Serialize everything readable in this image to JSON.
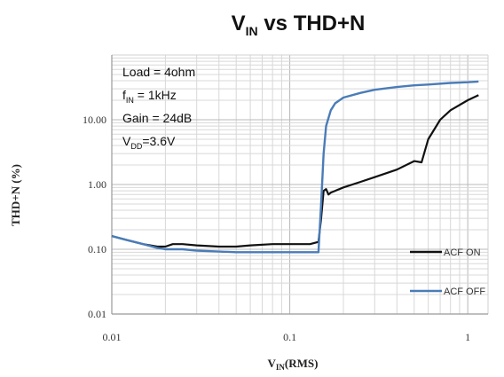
{
  "chart_data": {
    "type": "line",
    "title": {
      "main": "V",
      "sub": "IN",
      "rest": " vs THD+N"
    },
    "xlabel": {
      "main": "V",
      "sub": "IN",
      "rest": "(RMS)"
    },
    "ylabel": "THD+N (%)",
    "x_scale": "log",
    "y_scale": "log",
    "xlim": [
      0.01,
      1.3
    ],
    "ylim": [
      0.01,
      100
    ],
    "x_ticks": [
      0.01,
      0.1,
      1
    ],
    "x_tick_labels": [
      "0.01",
      "0.1",
      "1"
    ],
    "y_ticks": [
      0.01,
      0.1,
      1,
      10
    ],
    "y_tick_labels": [
      "0.01",
      "0.10",
      "1.00",
      "10.00"
    ],
    "grid": true,
    "legend_position": "bottom-right",
    "conditions": [
      {
        "text": "Load = 4ohm"
      },
      {
        "pre": "f",
        "sub": "IN",
        "post": " = 1kHz"
      },
      {
        "text": "Gain = 24dB"
      },
      {
        "pre": "V",
        "sub": "DD",
        "post": "=3.6V"
      }
    ],
    "series": [
      {
        "name": "ACF ON",
        "color": "#111111",
        "x": [
          0.01,
          0.012,
          0.015,
          0.018,
          0.02,
          0.022,
          0.025,
          0.03,
          0.04,
          0.05,
          0.06,
          0.08,
          0.1,
          0.13,
          0.145,
          0.15,
          0.155,
          0.16,
          0.165,
          0.17,
          0.18,
          0.2,
          0.25,
          0.3,
          0.4,
          0.5,
          0.55,
          0.6,
          0.7,
          0.8,
          1.0,
          1.15
        ],
        "y": [
          0.16,
          0.14,
          0.12,
          0.11,
          0.11,
          0.12,
          0.12,
          0.115,
          0.11,
          0.11,
          0.115,
          0.12,
          0.12,
          0.12,
          0.13,
          0.3,
          0.8,
          0.85,
          0.7,
          0.75,
          0.8,
          0.9,
          1.1,
          1.3,
          1.7,
          2.3,
          2.2,
          5.0,
          10.0,
          14.0,
          20.0,
          24.0
        ]
      },
      {
        "name": "ACF OFF",
        "color": "#4a7cb8",
        "x": [
          0.01,
          0.012,
          0.015,
          0.018,
          0.02,
          0.025,
          0.03,
          0.04,
          0.05,
          0.06,
          0.08,
          0.1,
          0.13,
          0.145,
          0.15,
          0.155,
          0.16,
          0.17,
          0.18,
          0.2,
          0.25,
          0.3,
          0.4,
          0.5,
          0.6,
          0.8,
          1.0,
          1.15
        ],
        "y": [
          0.16,
          0.14,
          0.12,
          0.105,
          0.1,
          0.1,
          0.095,
          0.092,
          0.09,
          0.09,
          0.09,
          0.09,
          0.09,
          0.09,
          0.5,
          3.0,
          8.0,
          14.0,
          18.0,
          22.0,
          26.0,
          29.0,
          32.0,
          34.0,
          35.0,
          37.0,
          38.0,
          39.0
        ]
      }
    ]
  }
}
